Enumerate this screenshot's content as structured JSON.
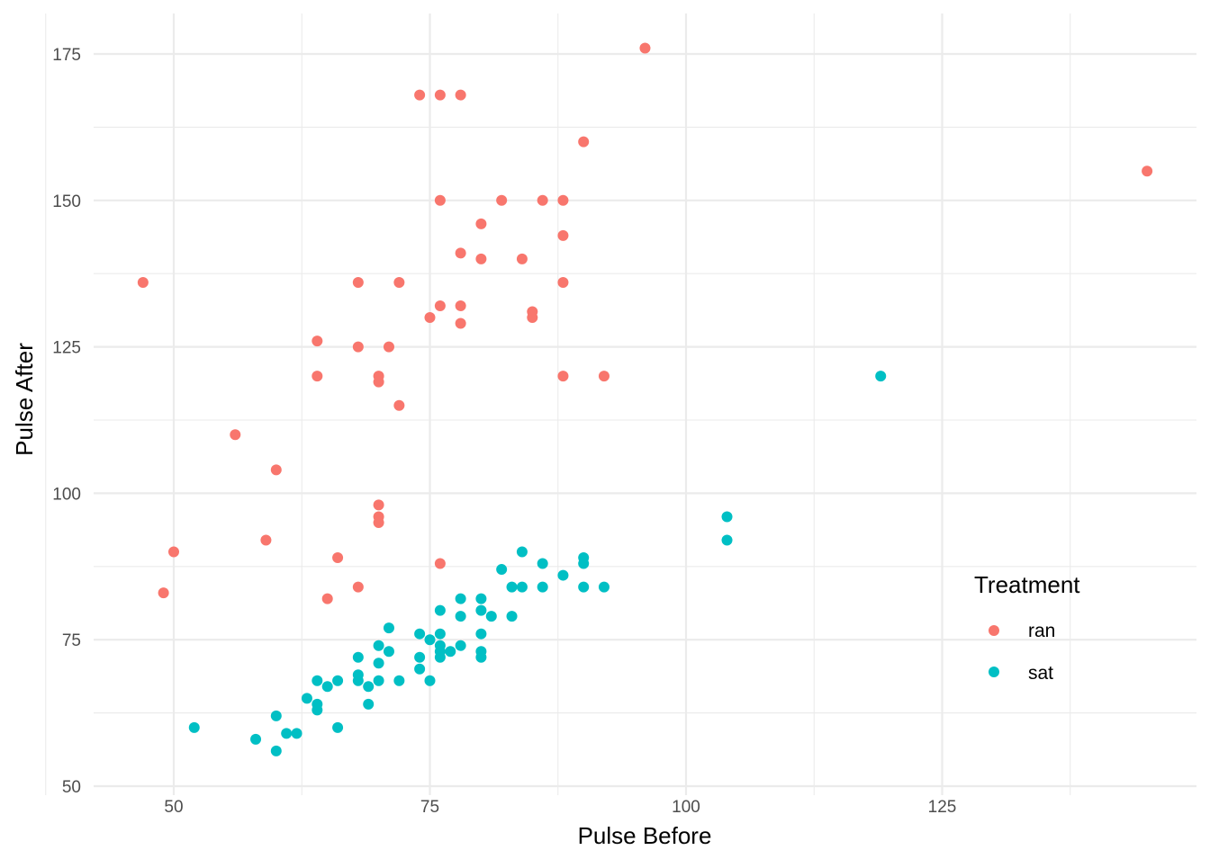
{
  "chart_data": {
    "type": "scatter",
    "xlabel": "Pulse Before",
    "ylabel": "Pulse After",
    "xlim": [
      42.3,
      149.7
    ],
    "ylim": [
      48,
      177
    ],
    "xticks": [
      50,
      75,
      100,
      125
    ],
    "yticks": [
      50,
      75,
      100,
      125,
      150,
      175
    ],
    "grid": true,
    "legend": {
      "title": "Treatment",
      "placement": "right"
    },
    "series": [
      {
        "name": "ran",
        "color": "#F8766D",
        "points": [
          [
            96,
            176
          ],
          [
            74,
            168
          ],
          [
            76,
            168
          ],
          [
            78,
            168
          ],
          [
            90,
            160
          ],
          [
            145,
            155
          ],
          [
            76,
            150
          ],
          [
            82,
            150
          ],
          [
            86,
            150
          ],
          [
            88,
            150
          ],
          [
            80,
            146
          ],
          [
            88,
            144
          ],
          [
            78,
            141
          ],
          [
            80,
            140
          ],
          [
            84,
            140
          ],
          [
            47,
            136
          ],
          [
            68,
            136
          ],
          [
            72,
            136
          ],
          [
            88,
            136
          ],
          [
            76,
            132
          ],
          [
            78,
            132
          ],
          [
            85,
            131
          ],
          [
            75,
            130
          ],
          [
            85,
            130
          ],
          [
            78,
            129
          ],
          [
            64,
            126
          ],
          [
            68,
            125
          ],
          [
            71,
            125
          ],
          [
            64,
            120
          ],
          [
            70,
            120
          ],
          [
            88,
            120
          ],
          [
            92,
            120
          ],
          [
            70,
            119
          ],
          [
            72,
            115
          ],
          [
            56,
            110
          ],
          [
            60,
            104
          ],
          [
            70,
            98
          ],
          [
            70,
            96
          ],
          [
            70,
            95
          ],
          [
            59,
            92
          ],
          [
            50,
            90
          ],
          [
            66,
            89
          ],
          [
            76,
            88
          ],
          [
            68,
            84
          ],
          [
            49,
            83
          ],
          [
            65,
            82
          ]
        ]
      },
      {
        "name": "sat",
        "color": "#00BFC4",
        "points": [
          [
            119,
            120
          ],
          [
            104,
            96
          ],
          [
            104,
            92
          ],
          [
            84,
            90
          ],
          [
            90,
            89
          ],
          [
            90,
            88
          ],
          [
            86,
            88
          ],
          [
            82,
            87
          ],
          [
            88,
            86
          ],
          [
            83,
            84
          ],
          [
            84,
            84
          ],
          [
            86,
            84
          ],
          [
            90,
            84
          ],
          [
            92,
            84
          ],
          [
            78,
            82
          ],
          [
            80,
            82
          ],
          [
            76,
            80
          ],
          [
            80,
            80
          ],
          [
            78,
            79
          ],
          [
            81,
            79
          ],
          [
            83,
            79
          ],
          [
            71,
            77
          ],
          [
            74,
            76
          ],
          [
            76,
            76
          ],
          [
            80,
            76
          ],
          [
            75,
            75
          ],
          [
            70,
            74
          ],
          [
            76,
            74
          ],
          [
            78,
            74
          ],
          [
            71,
            73
          ],
          [
            76,
            73
          ],
          [
            77,
            73
          ],
          [
            80,
            73
          ],
          [
            68,
            72
          ],
          [
            74,
            72
          ],
          [
            76,
            72
          ],
          [
            80,
            72
          ],
          [
            70,
            71
          ],
          [
            74,
            70
          ],
          [
            68,
            69
          ],
          [
            64,
            68
          ],
          [
            66,
            68
          ],
          [
            68,
            68
          ],
          [
            70,
            68
          ],
          [
            72,
            68
          ],
          [
            75,
            68
          ],
          [
            65,
            67
          ],
          [
            69,
            67
          ],
          [
            63,
            65
          ],
          [
            64,
            64
          ],
          [
            69,
            64
          ],
          [
            64,
            63
          ],
          [
            60,
            62
          ],
          [
            52,
            60
          ],
          [
            66,
            60
          ],
          [
            61,
            59
          ],
          [
            62,
            59
          ],
          [
            58,
            58
          ],
          [
            60,
            56
          ]
        ]
      }
    ]
  }
}
